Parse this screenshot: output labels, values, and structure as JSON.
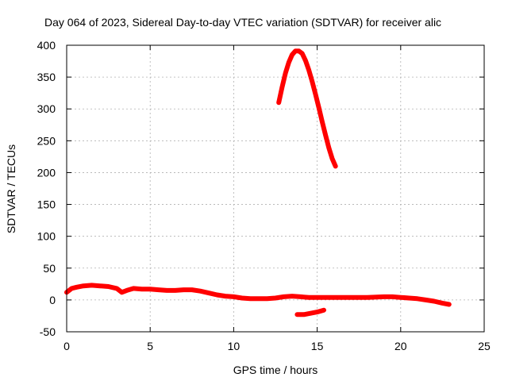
{
  "chart_data": {
    "type": "line",
    "title": "Day 064 of 2023, Sidereal Day-to-day VTEC variation (SDTVAR) for receiver alic",
    "xlabel": "GPS time / hours",
    "ylabel": "SDTVAR / TECUs",
    "xlim": [
      0,
      25
    ],
    "ylim": [
      -50,
      400
    ],
    "xticks": [
      "0",
      "5",
      "10",
      "15",
      "20",
      "25"
    ],
    "yticks": [
      "-50",
      "0",
      "50",
      "100",
      "150",
      "200",
      "250",
      "300",
      "350",
      "400"
    ],
    "grid": true,
    "legend": "none",
    "color": "#ff0000",
    "series": [
      {
        "x": [
          0.0,
          0.3,
          0.6,
          1.0,
          1.5,
          2.0,
          2.5,
          3.0,
          3.3,
          3.6,
          4.0,
          4.5,
          5.0,
          5.5,
          6.0,
          6.5,
          7.0,
          7.5,
          8.0,
          8.5,
          9.0,
          9.5,
          10.0,
          10.5,
          11.0,
          11.5,
          12.0,
          12.5,
          13.0,
          13.5,
          14.0,
          14.5,
          15.0,
          16.0,
          17.0,
          18.0,
          19.0,
          19.5,
          20.0,
          20.5,
          21.0,
          21.5,
          22.0,
          22.5,
          22.9
        ],
        "y": [
          12,
          18,
          20,
          22,
          23,
          22,
          21,
          18,
          12,
          15,
          18,
          17,
          17,
          16,
          15,
          15,
          16,
          16,
          14,
          11,
          8,
          6,
          5,
          3,
          2,
          2,
          2,
          3,
          5,
          6,
          5,
          4,
          4,
          4,
          4,
          4,
          5,
          5,
          4,
          3,
          2,
          0,
          -2,
          -5,
          -7
        ]
      },
      {
        "x": [
          12.7,
          12.9,
          13.1,
          13.3,
          13.5,
          13.7,
          13.9,
          14.1,
          14.3,
          14.5,
          14.7,
          14.9,
          15.1,
          15.3,
          15.5,
          15.7,
          15.9,
          16.1
        ],
        "y": [
          310,
          334,
          356,
          373,
          385,
          391,
          391,
          387,
          376,
          361,
          343,
          323,
          302,
          280,
          259,
          239,
          222,
          210
        ]
      },
      {
        "x": [
          13.8,
          14.2,
          14.6,
          15.0,
          15.4
        ],
        "y": [
          -23,
          -23,
          -21,
          -19,
          -16
        ]
      }
    ]
  }
}
